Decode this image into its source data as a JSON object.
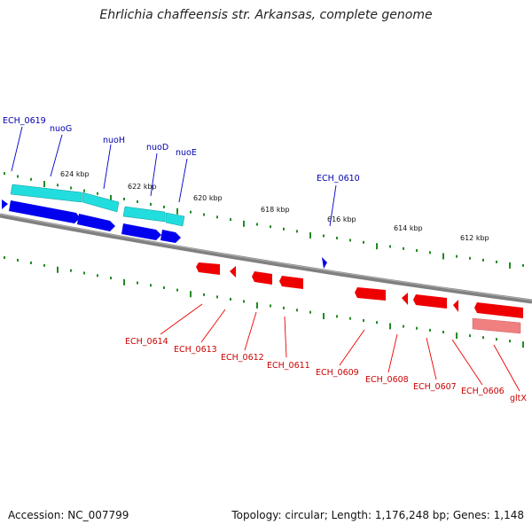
{
  "title": "Ehrlichia chaffeensis str. Arkansas, complete genome",
  "footer": {
    "accession": "Accession: NC_007799",
    "summary": "Topology: circular; Length: 1,176,248 bp; Genes: 1,148"
  },
  "colors": {
    "backbone": "#808080",
    "ticks": "#228b22",
    "forward_gene": "#0000ee",
    "forward_cds": "#22dddd",
    "reverse_gene": "#ee0000",
    "reverse_rna": "#f08080",
    "forward_label": "#0000b0",
    "reverse_label": "#cc0000"
  },
  "scale": {
    "tick_labels": [
      "624 kbp",
      "622 kbp",
      "620 kbp",
      "618 kbp",
      "616 kbp",
      "614 kbp",
      "612 kbp"
    ]
  },
  "forward_labels": [
    "ECH_0619",
    "nuoG",
    "nuoH",
    "nuoD",
    "nuoE",
    "ECH_0610"
  ],
  "reverse_labels": [
    "ECH_0614",
    "ECH_0613",
    "ECH_0612",
    "ECH_0611",
    "ECH_0609",
    "ECH_0608",
    "ECH_0607",
    "ECH_0606",
    "gltX"
  ]
}
